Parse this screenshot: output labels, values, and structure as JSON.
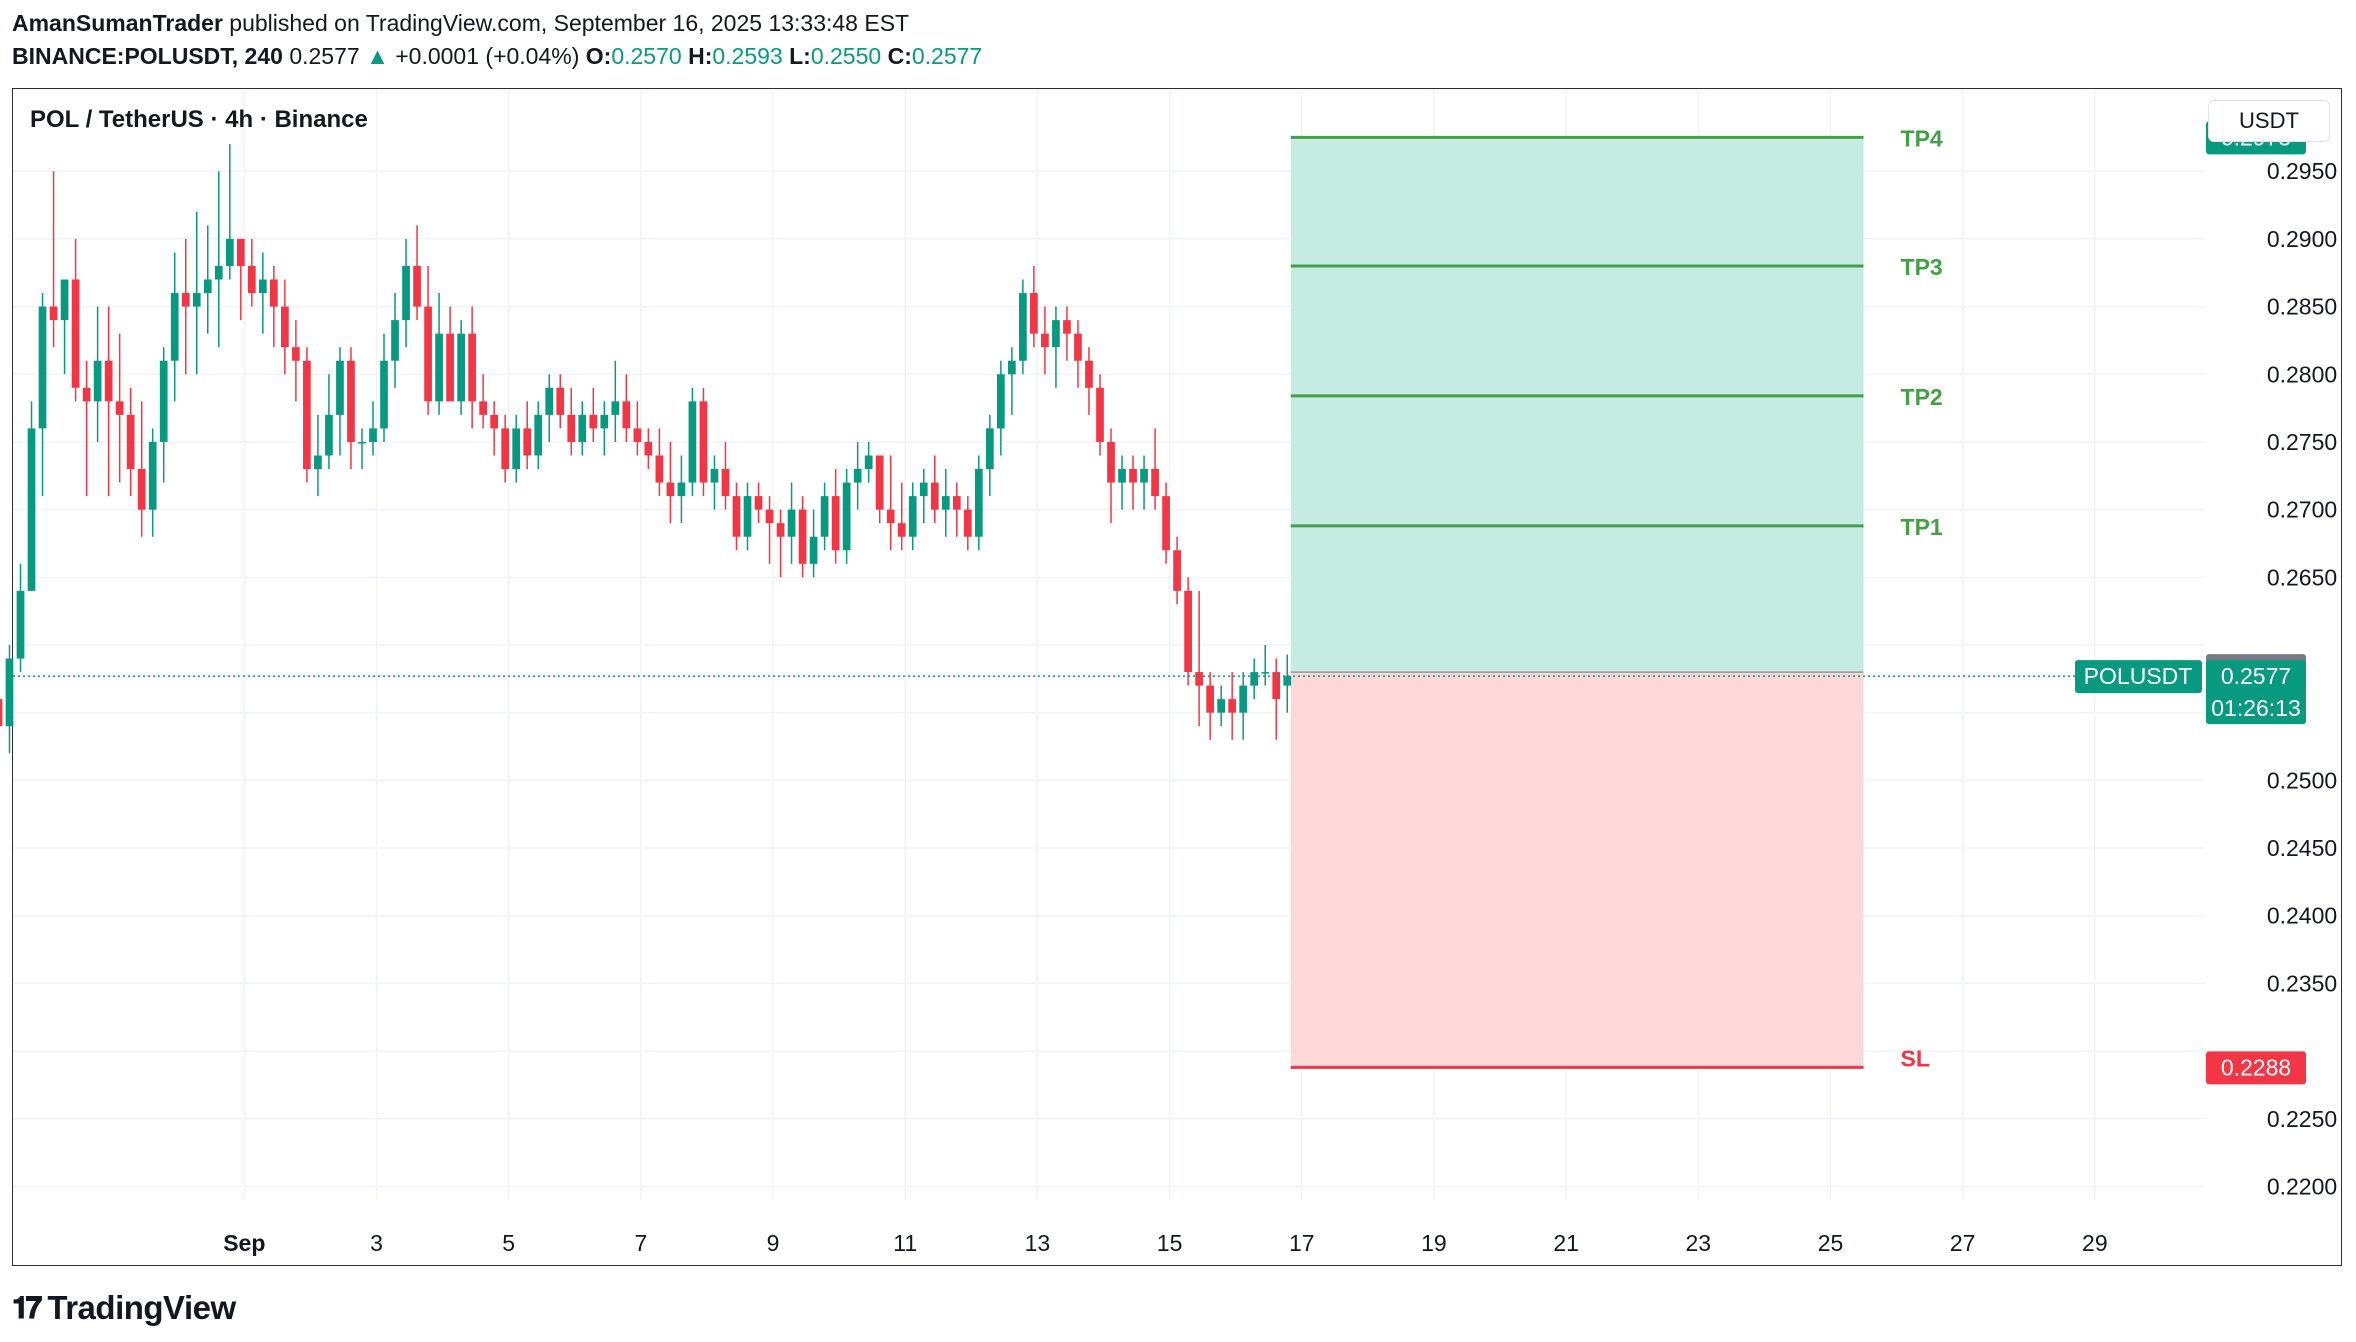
{
  "header": {
    "author": "AmanSumanTrader",
    "published": " published on TradingView.com, September 16, 2025 13:33:48 EST",
    "symbol": "BINANCE:POLUSDT, 240",
    "last": "0.2577",
    "change": "+0.0001 (+0.04%)",
    "o_label": "O:",
    "o": "0.2570",
    "h_label": "H:",
    "h": "0.2593",
    "l_label": "L:",
    "l": "0.2550",
    "c_label": "C:",
    "c": "0.2577"
  },
  "chart_title": "POL / TetherUS · 4h · Binance",
  "currency_button": "USDT",
  "footer": {
    "logo_text": "TradingView"
  },
  "colors": {
    "up": "#089981",
    "down": "#f23645",
    "target_fill": "#c6ebe3",
    "stop_fill": "#fcd9d8",
    "tp_line": "#43a047",
    "sl_line": "#f23645",
    "grid": "#f0f3fa"
  },
  "chart_data": {
    "type": "candlestick",
    "title": "POL / TetherUS · 4h · Binance",
    "ylim": [
      0.219,
      0.301
    ],
    "x_start": "2025-08-28T12:00",
    "x_end": "2025-09-30T16:00",
    "x_tick_labels": [
      {
        "date": "2025-09-01",
        "label": "Sep"
      },
      {
        "date": "2025-09-03",
        "label": "3"
      },
      {
        "date": "2025-09-05",
        "label": "5"
      },
      {
        "date": "2025-09-07",
        "label": "7"
      },
      {
        "date": "2025-09-09",
        "label": "9"
      },
      {
        "date": "2025-09-11",
        "label": "11"
      },
      {
        "date": "2025-09-13",
        "label": "13"
      },
      {
        "date": "2025-09-15",
        "label": "15"
      },
      {
        "date": "2025-09-17",
        "label": "17"
      },
      {
        "date": "2025-09-19",
        "label": "19"
      },
      {
        "date": "2025-09-21",
        "label": "21"
      },
      {
        "date": "2025-09-23",
        "label": "23"
      },
      {
        "date": "2025-09-25",
        "label": "25"
      },
      {
        "date": "2025-09-27",
        "label": "27"
      },
      {
        "date": "2025-09-29",
        "label": "29"
      }
    ],
    "y_tick_labels": [
      "0.2950",
      "0.2900",
      "0.2850",
      "0.2800",
      "0.2750",
      "0.2700",
      "0.2650",
      "0.2500",
      "0.2450",
      "0.2400",
      "0.2350",
      "0.2250",
      "0.2200"
    ],
    "series_name": "POLUSDT",
    "candles": [
      [
        0.259,
        0.2625,
        0.243,
        0.244
      ],
      [
        0.244,
        0.247,
        0.242,
        0.2455
      ],
      [
        0.2455,
        0.247,
        0.242,
        0.243
      ],
      [
        0.243,
        0.244,
        0.237,
        0.24
      ],
      [
        0.24,
        0.242,
        0.237,
        0.241
      ],
      [
        0.241,
        0.244,
        0.239,
        0.242
      ],
      [
        0.242,
        0.245,
        0.241,
        0.243
      ],
      [
        0.243,
        0.246,
        0.24,
        0.244
      ],
      [
        0.244,
        0.257,
        0.243,
        0.255
      ],
      [
        0.255,
        0.257,
        0.253,
        0.256
      ],
      [
        0.256,
        0.259,
        0.252,
        0.254
      ],
      [
        0.254,
        0.26,
        0.252,
        0.259
      ],
      [
        0.259,
        0.266,
        0.258,
        0.264
      ],
      [
        0.264,
        0.278,
        0.264,
        0.276
      ],
      [
        0.276,
        0.286,
        0.271,
        0.285
      ],
      [
        0.285,
        0.295,
        0.282,
        0.284
      ],
      [
        0.284,
        0.287,
        0.28,
        0.287
      ],
      [
        0.287,
        0.29,
        0.278,
        0.279
      ],
      [
        0.279,
        0.281,
        0.271,
        0.278
      ],
      [
        0.278,
        0.285,
        0.275,
        0.281
      ],
      [
        0.281,
        0.285,
        0.271,
        0.278
      ],
      [
        0.278,
        0.283,
        0.272,
        0.277
      ],
      [
        0.277,
        0.279,
        0.271,
        0.273
      ],
      [
        0.273,
        0.278,
        0.268,
        0.27
      ],
      [
        0.27,
        0.276,
        0.268,
        0.275
      ],
      [
        0.275,
        0.282,
        0.272,
        0.281
      ],
      [
        0.281,
        0.289,
        0.278,
        0.286
      ],
      [
        0.286,
        0.29,
        0.28,
        0.285
      ],
      [
        0.285,
        0.292,
        0.28,
        0.286
      ],
      [
        0.286,
        0.291,
        0.283,
        0.287
      ],
      [
        0.287,
        0.295,
        0.282,
        0.288
      ],
      [
        0.288,
        0.297,
        0.287,
        0.29
      ],
      [
        0.29,
        0.29,
        0.284,
        0.288
      ],
      [
        0.288,
        0.29,
        0.285,
        0.286
      ],
      [
        0.286,
        0.289,
        0.283,
        0.287
      ],
      [
        0.287,
        0.288,
        0.282,
        0.285
      ],
      [
        0.285,
        0.287,
        0.28,
        0.282
      ],
      [
        0.282,
        0.284,
        0.278,
        0.281
      ],
      [
        0.281,
        0.282,
        0.272,
        0.273
      ],
      [
        0.273,
        0.277,
        0.271,
        0.274
      ],
      [
        0.274,
        0.28,
        0.273,
        0.277
      ],
      [
        0.277,
        0.282,
        0.274,
        0.281
      ],
      [
        0.281,
        0.282,
        0.273,
        0.275
      ],
      [
        0.275,
        0.276,
        0.273,
        0.275
      ],
      [
        0.275,
        0.278,
        0.274,
        0.276
      ],
      [
        0.276,
        0.283,
        0.275,
        0.281
      ],
      [
        0.281,
        0.286,
        0.279,
        0.284
      ],
      [
        0.284,
        0.29,
        0.282,
        0.288
      ],
      [
        0.288,
        0.291,
        0.284,
        0.285
      ],
      [
        0.285,
        0.288,
        0.277,
        0.278
      ],
      [
        0.278,
        0.286,
        0.277,
        0.283
      ],
      [
        0.283,
        0.285,
        0.278,
        0.278
      ],
      [
        0.278,
        0.284,
        0.277,
        0.283
      ],
      [
        0.283,
        0.285,
        0.276,
        0.278
      ],
      [
        0.278,
        0.28,
        0.276,
        0.277
      ],
      [
        0.277,
        0.278,
        0.274,
        0.276
      ],
      [
        0.276,
        0.277,
        0.272,
        0.273
      ],
      [
        0.273,
        0.277,
        0.272,
        0.276
      ],
      [
        0.276,
        0.278,
        0.273,
        0.274
      ],
      [
        0.274,
        0.278,
        0.273,
        0.277
      ],
      [
        0.277,
        0.28,
        0.275,
        0.279
      ],
      [
        0.279,
        0.28,
        0.276,
        0.277
      ],
      [
        0.277,
        0.279,
        0.274,
        0.275
      ],
      [
        0.275,
        0.278,
        0.274,
        0.277
      ],
      [
        0.277,
        0.279,
        0.275,
        0.276
      ],
      [
        0.276,
        0.278,
        0.274,
        0.277
      ],
      [
        0.277,
        0.281,
        0.275,
        0.278
      ],
      [
        0.278,
        0.28,
        0.275,
        0.276
      ],
      [
        0.276,
        0.278,
        0.274,
        0.275
      ],
      [
        0.275,
        0.276,
        0.273,
        0.274
      ],
      [
        0.274,
        0.276,
        0.271,
        0.272
      ],
      [
        0.272,
        0.275,
        0.269,
        0.271
      ],
      [
        0.271,
        0.274,
        0.269,
        0.272
      ],
      [
        0.272,
        0.279,
        0.271,
        0.278
      ],
      [
        0.278,
        0.279,
        0.271,
        0.272
      ],
      [
        0.272,
        0.274,
        0.27,
        0.273
      ],
      [
        0.273,
        0.275,
        0.27,
        0.271
      ],
      [
        0.271,
        0.272,
        0.267,
        0.268
      ],
      [
        0.268,
        0.272,
        0.267,
        0.271
      ],
      [
        0.271,
        0.272,
        0.269,
        0.27
      ],
      [
        0.27,
        0.271,
        0.266,
        0.269
      ],
      [
        0.269,
        0.27,
        0.265,
        0.268
      ],
      [
        0.268,
        0.272,
        0.266,
        0.27
      ],
      [
        0.27,
        0.271,
        0.265,
        0.266
      ],
      [
        0.266,
        0.27,
        0.265,
        0.268
      ],
      [
        0.268,
        0.272,
        0.267,
        0.271
      ],
      [
        0.271,
        0.273,
        0.266,
        0.267
      ],
      [
        0.267,
        0.273,
        0.266,
        0.272
      ],
      [
        0.272,
        0.275,
        0.27,
        0.273
      ],
      [
        0.273,
        0.275,
        0.272,
        0.274
      ],
      [
        0.274,
        0.274,
        0.269,
        0.27
      ],
      [
        0.27,
        0.274,
        0.267,
        0.269
      ],
      [
        0.269,
        0.272,
        0.267,
        0.268
      ],
      [
        0.268,
        0.272,
        0.267,
        0.271
      ],
      [
        0.271,
        0.273,
        0.269,
        0.272
      ],
      [
        0.272,
        0.274,
        0.269,
        0.27
      ],
      [
        0.27,
        0.273,
        0.268,
        0.271
      ],
      [
        0.271,
        0.272,
        0.268,
        0.27
      ],
      [
        0.27,
        0.271,
        0.267,
        0.268
      ],
      [
        0.268,
        0.274,
        0.267,
        0.273
      ],
      [
        0.273,
        0.277,
        0.271,
        0.276
      ],
      [
        0.276,
        0.281,
        0.274,
        0.28
      ],
      [
        0.28,
        0.282,
        0.277,
        0.281
      ],
      [
        0.281,
        0.287,
        0.28,
        0.286
      ],
      [
        0.286,
        0.288,
        0.282,
        0.283
      ],
      [
        0.283,
        0.285,
        0.28,
        0.282
      ],
      [
        0.282,
        0.285,
        0.279,
        0.284
      ],
      [
        0.284,
        0.285,
        0.281,
        0.283
      ],
      [
        0.283,
        0.284,
        0.279,
        0.281
      ],
      [
        0.281,
        0.282,
        0.277,
        0.279
      ],
      [
        0.279,
        0.28,
        0.274,
        0.275
      ],
      [
        0.275,
        0.276,
        0.269,
        0.272
      ],
      [
        0.272,
        0.274,
        0.27,
        0.273
      ],
      [
        0.273,
        0.274,
        0.27,
        0.272
      ],
      [
        0.272,
        0.274,
        0.27,
        0.273
      ],
      [
        0.273,
        0.276,
        0.27,
        0.271
      ],
      [
        0.271,
        0.272,
        0.266,
        0.267
      ],
      [
        0.267,
        0.268,
        0.263,
        0.264
      ],
      [
        0.264,
        0.265,
        0.257,
        0.258
      ],
      [
        0.258,
        0.264,
        0.254,
        0.257
      ],
      [
        0.257,
        0.258,
        0.253,
        0.255
      ],
      [
        0.255,
        0.257,
        0.254,
        0.256
      ],
      [
        0.256,
        0.258,
        0.253,
        0.255
      ],
      [
        0.255,
        0.258,
        0.253,
        0.257
      ],
      [
        0.257,
        0.259,
        0.256,
        0.258
      ],
      [
        0.258,
        0.26,
        0.257,
        0.258
      ],
      [
        0.258,
        0.259,
        0.253,
        0.256
      ],
      [
        0.257,
        0.2593,
        0.255,
        0.2577
      ]
    ],
    "current_price": {
      "label": "POLUSDT",
      "value": "0.2577",
      "countdown": "01:26:13"
    },
    "entry_marker": {
      "value": "0.2580"
    },
    "position": {
      "start_date": "2025-09-16T20:00",
      "end_date": "2025-09-25T12:00",
      "entry": 0.258,
      "targets": [
        {
          "label": "TP1",
          "value": 0.2688
        },
        {
          "label": "TP2",
          "value": 0.2784
        },
        {
          "label": "TP3",
          "value": 0.288
        },
        {
          "label": "TP4",
          "value": 0.2975
        }
      ],
      "stop": {
        "label": "SL",
        "value": 0.2288
      },
      "target_axis_label": "0.2975",
      "stop_axis_label": "0.2288"
    }
  }
}
